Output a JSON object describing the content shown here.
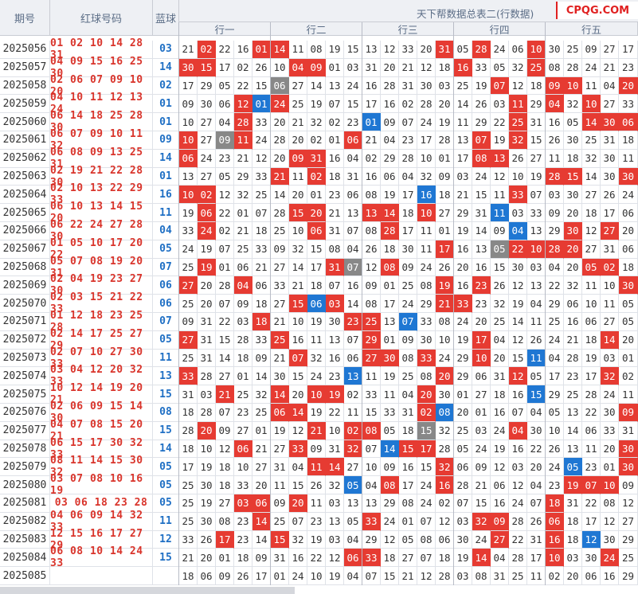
{
  "headers": {
    "period": "期号",
    "red": "红球号码",
    "blue": "蓝球"
  },
  "title": "天下帮数据总表二(行数据)",
  "logo": "CPQG.COM",
  "groups": [
    "行一",
    "行二",
    "行三",
    "行四",
    "行五"
  ],
  "colors": {
    "hit_red": "#e63b32",
    "hit_blue": "#1f77d3",
    "hit_gray": "#888888",
    "red_text": "#d9342b",
    "blue_text": "#1f6fc4"
  },
  "rows": [
    {
      "period": "2025056",
      "red": "01 02 10 14 28 31",
      "blue": "03",
      "cells": [
        "21",
        "02",
        "22",
        "16",
        "01",
        "14",
        "11",
        "08",
        "19",
        "15",
        "13",
        "12",
        "33",
        "20",
        "31",
        "05",
        "28",
        "24",
        "06",
        "10",
        "30",
        "25",
        "09",
        "27",
        "17"
      ],
      "hl": "-r--r r---- ----r -r--r -----"
    },
    {
      "period": "2025057",
      "red": "04 09 15 16 25 30",
      "blue": "14",
      "cells": [
        "30",
        "15",
        "17",
        "02",
        "26",
        "10",
        "04",
        "09",
        "01",
        "03",
        "31",
        "20",
        "21",
        "12",
        "18",
        "16",
        "33",
        "05",
        "32",
        "25",
        "08",
        "28",
        "24",
        "21",
        "23"
      ],
      "hl": "rr--- -rr-- ----- r---r -----"
    },
    {
      "period": "2025058",
      "red": "02 06 07 09 10 20",
      "blue": "02",
      "cells": [
        "17",
        "29",
        "05",
        "22",
        "15",
        "06",
        "27",
        "14",
        "13",
        "24",
        "16",
        "28",
        "31",
        "30",
        "03",
        "25",
        "19",
        "07",
        "12",
        "18",
        "09",
        "10",
        "11",
        "04",
        "20"
      ],
      "hl": "----- g---- ----- --r-- rr--r"
    },
    {
      "period": "2025059",
      "red": "04 10 11 12 13 24",
      "blue": "01",
      "cells": [
        "09",
        "30",
        "06",
        "12",
        "01",
        "24",
        "25",
        "19",
        "07",
        "15",
        "17",
        "16",
        "02",
        "28",
        "20",
        "14",
        "26",
        "03",
        "11",
        "29",
        "04",
        "32",
        "10",
        "27",
        "33"
      ],
      "hl": "---rb r---- ----- ---r- r-r--"
    },
    {
      "period": "2025060",
      "red": "06 14 18 25 28 30",
      "blue": "01",
      "cells": [
        "10",
        "27",
        "04",
        "28",
        "33",
        "20",
        "21",
        "32",
        "02",
        "23",
        "01",
        "09",
        "07",
        "24",
        "19",
        "11",
        "29",
        "22",
        "25",
        "31",
        "16",
        "05",
        "14",
        "30",
        "06"
      ],
      "hl": "---r- ----- b---- ---r- --rrr"
    },
    {
      "period": "2025061",
      "red": "06 07 09 10 11 32",
      "blue": "09",
      "cells": [
        "10",
        "27",
        "09",
        "11",
        "24",
        "28",
        "20",
        "02",
        "01",
        "06",
        "21",
        "04",
        "23",
        "17",
        "28",
        "13",
        "07",
        "19",
        "32",
        "15",
        "26",
        "30",
        "25",
        "31",
        "18"
      ],
      "hl": "r-gr- ----r ----- -r-r- -----"
    },
    {
      "period": "2025062",
      "red": "06 08 09 13 25 31",
      "blue": "14",
      "cells": [
        "06",
        "24",
        "23",
        "21",
        "12",
        "20",
        "09",
        "31",
        "16",
        "04",
        "02",
        "29",
        "28",
        "10",
        "01",
        "17",
        "08",
        "13",
        "26",
        "27",
        "11",
        "18",
        "32",
        "30",
        "11"
      ],
      "hl": "r---- -rr-- ----- -rr-- -----"
    },
    {
      "period": "2025063",
      "red": "02 19 21 22 28 30",
      "blue": "01",
      "cells": [
        "13",
        "27",
        "05",
        "29",
        "33",
        "21",
        "11",
        "02",
        "18",
        "31",
        "16",
        "06",
        "04",
        "32",
        "09",
        "03",
        "24",
        "12",
        "10",
        "19",
        "28",
        "15",
        "14",
        "30",
        "30"
      ],
      "hl": "----- r-r-- ----- ----- rr--r"
    },
    {
      "period": "2025064",
      "red": "02 10 13 22 29 33",
      "blue": "16",
      "cells": [
        "10",
        "02",
        "12",
        "32",
        "25",
        "14",
        "20",
        "01",
        "23",
        "06",
        "08",
        "19",
        "17",
        "16",
        "18",
        "21",
        "15",
        "11",
        "33",
        "07",
        "03",
        "30",
        "27",
        "26",
        "24"
      ],
      "hl": "rr--- ----- ---b- ---r- -----"
    },
    {
      "period": "2025065",
      "red": "06 10 13 14 15 20",
      "blue": "11",
      "cells": [
        "19",
        "06",
        "22",
        "01",
        "07",
        "28",
        "15",
        "20",
        "21",
        "13",
        "13",
        "14",
        "18",
        "10",
        "27",
        "29",
        "31",
        "11",
        "03",
        "33",
        "09",
        "20",
        "18",
        "17",
        "06"
      ],
      "hl": "-r--- -rr-- rr-r- --b-- -----"
    },
    {
      "period": "2025066",
      "red": "06 22 24 27 28 30",
      "blue": "04",
      "cells": [
        "33",
        "24",
        "02",
        "21",
        "18",
        "25",
        "10",
        "06",
        "31",
        "07",
        "08",
        "28",
        "17",
        "11",
        "01",
        "19",
        "14",
        "09",
        "04",
        "13",
        "29",
        "30",
        "12",
        "27",
        "20"
      ],
      "hl": "-r--- --r-- -r--- ---b- -r-r-"
    },
    {
      "period": "2025067",
      "red": "01 05 10 17 20 22",
      "blue": "05",
      "cells": [
        "24",
        "19",
        "07",
        "25",
        "33",
        "09",
        "32",
        "15",
        "08",
        "04",
        "26",
        "18",
        "30",
        "11",
        "17",
        "16",
        "13",
        "05",
        "22",
        "10",
        "28",
        "20",
        "27",
        "31",
        "06"
      ],
      "hl": "----- ----- ----r --grr rr---"
    },
    {
      "period": "2025068",
      "red": "05 07 08 19 20 31",
      "blue": "07",
      "cells": [
        "25",
        "19",
        "01",
        "06",
        "21",
        "27",
        "14",
        "17",
        "31",
        "07",
        "12",
        "08",
        "09",
        "24",
        "26",
        "20",
        "16",
        "15",
        "30",
        "03",
        "04",
        "20",
        "05",
        "02",
        "18"
      ],
      "hl": "-r--- ---rg -r--- ----- --rr-"
    },
    {
      "period": "2025069",
      "red": "02 04 19 23 27 30",
      "blue": "06",
      "cells": [
        "27",
        "20",
        "28",
        "04",
        "06",
        "33",
        "21",
        "18",
        "07",
        "16",
        "09",
        "01",
        "25",
        "08",
        "19",
        "16",
        "23",
        "26",
        "12",
        "13",
        "22",
        "32",
        "11",
        "10",
        "30"
      ],
      "hl": "r--r- ----- ----r -r--- ----r"
    },
    {
      "period": "2025070",
      "red": "02 03 15 21 22 33",
      "blue": "06",
      "cells": [
        "25",
        "20",
        "07",
        "09",
        "18",
        "27",
        "15",
        "06",
        "03",
        "14",
        "08",
        "17",
        "24",
        "29",
        "21",
        "33",
        "23",
        "32",
        "19",
        "04",
        "29",
        "06",
        "10",
        "11",
        "05"
      ],
      "hl": "----- -rbr- ----r r---- -----"
    },
    {
      "period": "2025071",
      "red": "01 12 18 23 25 28",
      "blue": "07",
      "cells": [
        "09",
        "31",
        "22",
        "03",
        "18",
        "21",
        "10",
        "19",
        "30",
        "23",
        "25",
        "13",
        "07",
        "33",
        "08",
        "24",
        "20",
        "25",
        "14",
        "11",
        "25",
        "16",
        "06",
        "27",
        "05"
      ],
      "hl": "----r ----r r-b-- ----- -----"
    },
    {
      "period": "2025072",
      "red": "02 14 17 25 27 29",
      "blue": "05",
      "cells": [
        "27",
        "31",
        "15",
        "28",
        "33",
        "25",
        "16",
        "11",
        "13",
        "07",
        "29",
        "01",
        "09",
        "30",
        "10",
        "19",
        "17",
        "04",
        "12",
        "26",
        "24",
        "21",
        "18",
        "14",
        "20"
      ],
      "hl": "r---- r---- r---- -r--- ---r-"
    },
    {
      "period": "2025073",
      "red": "02 07 10 27 30 33",
      "blue": "11",
      "cells": [
        "25",
        "31",
        "14",
        "18",
        "09",
        "21",
        "07",
        "32",
        "16",
        "06",
        "27",
        "30",
        "08",
        "33",
        "24",
        "29",
        "10",
        "20",
        "15",
        "11",
        "04",
        "28",
        "19",
        "03",
        "01"
      ],
      "hl": "----- -r--- rr-r- -r--b -----"
    },
    {
      "period": "2025074",
      "red": "03 04 12 20 32 33",
      "blue": "13",
      "cells": [
        "33",
        "28",
        "27",
        "01",
        "14",
        "30",
        "15",
        "24",
        "23",
        "13",
        "11",
        "19",
        "25",
        "08",
        "20",
        "29",
        "06",
        "31",
        "12",
        "05",
        "17",
        "23",
        "17",
        "32",
        "02"
      ],
      "hl": "r---- ----b ----r ---r- ---r-"
    },
    {
      "period": "2025075",
      "red": "10 12 14 19 20 21",
      "blue": "15",
      "cells": [
        "31",
        "03",
        "21",
        "25",
        "32",
        "14",
        "20",
        "10",
        "19",
        "02",
        "33",
        "11",
        "04",
        "20",
        "30",
        "01",
        "27",
        "18",
        "16",
        "15",
        "29",
        "25",
        "28",
        "24",
        "11"
      ],
      "hl": "--r-- r-rr- ---r- ----b -----"
    },
    {
      "period": "2025076",
      "red": "02 06 09 15 14 30",
      "blue": "08",
      "cells": [
        "18",
        "28",
        "07",
        "23",
        "25",
        "06",
        "14",
        "19",
        "22",
        "11",
        "15",
        "33",
        "31",
        "02",
        "08",
        "20",
        "01",
        "16",
        "07",
        "04",
        "05",
        "13",
        "22",
        "30",
        "09"
      ],
      "hl": "----- rr--- ---rb ----- ----r"
    },
    {
      "period": "2025077",
      "red": "04 07 08 15 20 21",
      "blue": "15",
      "cells": [
        "28",
        "20",
        "09",
        "27",
        "01",
        "19",
        "12",
        "21",
        "10",
        "02",
        "08",
        "05",
        "18",
        "15",
        "32",
        "25",
        "03",
        "24",
        "04",
        "30",
        "10",
        "14",
        "06",
        "33",
        "31"
      ],
      "hl": "-r--- --r-r r--g- ---r- -----"
    },
    {
      "period": "2025078",
      "red": "06 15 17 30 32 33",
      "blue": "14",
      "cells": [
        "18",
        "10",
        "12",
        "06",
        "21",
        "27",
        "33",
        "09",
        "31",
        "32",
        "07",
        "14",
        "15",
        "17",
        "28",
        "05",
        "24",
        "19",
        "16",
        "22",
        "26",
        "13",
        "11",
        "20",
        "30"
      ],
      "hl": "---r- -r--r -brr- ----- ----r"
    },
    {
      "period": "2025079",
      "red": "08 11 14 15 30 32",
      "blue": "05",
      "cells": [
        "17",
        "19",
        "18",
        "10",
        "27",
        "31",
        "04",
        "11",
        "14",
        "27",
        "10",
        "09",
        "16",
        "15",
        "32",
        "06",
        "09",
        "12",
        "03",
        "20",
        "24",
        "05",
        "23",
        "01",
        "30"
      ],
      "hl": "----- --rr- ----r ----- -b--r"
    },
    {
      "period": "2025080",
      "red": "03 07 08 10 16 19",
      "blue": "05",
      "cells": [
        "25",
        "30",
        "18",
        "33",
        "20",
        "11",
        "15",
        "26",
        "32",
        "05",
        "04",
        "08",
        "17",
        "24",
        "16",
        "28",
        "21",
        "06",
        "12",
        "04",
        "23",
        "19",
        "07",
        "10",
        "09"
      ],
      "hl": "----- ----b -r--r ----- -rrr-"
    },
    {
      "period": "2025081",
      "red": "03 06 18 23 28",
      "blue": "05",
      "cells": [
        "25",
        "19",
        "27",
        "03",
        "06",
        "09",
        "20",
        "11",
        "03",
        "13",
        "13",
        "29",
        "08",
        "24",
        "02",
        "07",
        "15",
        "16",
        "24",
        "07",
        "18",
        "31",
        "22",
        "08",
        "12"
      ],
      "hl": "---rr -r--- ----- ----- r----"
    },
    {
      "period": "2025082",
      "red": "04 06 09 14 32 33",
      "blue": "11",
      "cells": [
        "25",
        "30",
        "08",
        "23",
        "14",
        "25",
        "07",
        "23",
        "13",
        "05",
        "33",
        "24",
        "01",
        "07",
        "12",
        "03",
        "32",
        "09",
        "28",
        "26",
        "06",
        "18",
        "17",
        "12",
        "27"
      ],
      "hl": "----r ----- r---- -rr-- r----"
    },
    {
      "period": "2025083",
      "red": "12 15 16 17 27 29",
      "blue": "12",
      "cells": [
        "33",
        "26",
        "17",
        "23",
        "14",
        "15",
        "32",
        "19",
        "03",
        "04",
        "29",
        "12",
        "05",
        "08",
        "06",
        "30",
        "24",
        "27",
        "22",
        "31",
        "16",
        "18",
        "12",
        "30",
        "29"
      ],
      "hl": "--r-- r---- ----- --r-- r-b--"
    },
    {
      "period": "2025084",
      "red": "06 08 10 14 24 33",
      "blue": "15",
      "cells": [
        "21",
        "20",
        "01",
        "18",
        "09",
        "31",
        "16",
        "22",
        "12",
        "06",
        "33",
        "18",
        "27",
        "07",
        "18",
        "19",
        "14",
        "04",
        "28",
        "17",
        "10",
        "03",
        "30",
        "24",
        "25"
      ],
      "hl": "----- ----r r---- -r--- r--r-"
    },
    {
      "period": "2025085",
      "red": "",
      "blue": "",
      "cells": [
        "18",
        "06",
        "09",
        "26",
        "17",
        "01",
        "24",
        "10",
        "19",
        "04",
        "07",
        "15",
        "21",
        "12",
        "28",
        "03",
        "08",
        "31",
        "25",
        "11",
        "02",
        "20",
        "06",
        "16",
        "29"
      ],
      "hl": "----- ----- ----- ----- -----"
    }
  ]
}
